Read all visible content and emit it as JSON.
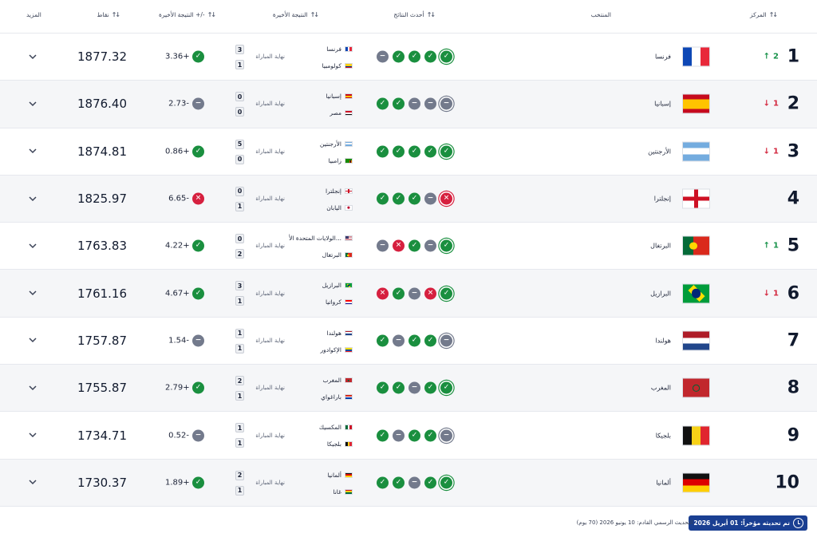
{
  "header": {
    "rank": "المركز",
    "team": "المنتخب",
    "recent_form": "أحدث النتائج",
    "last_result": "النتيجة الأخيرة",
    "last_change": "النتيجة الأخيرة +/-",
    "points": "نقاط",
    "more": "المزيد"
  },
  "colors": {
    "win": "#1a8f3f",
    "draw": "#737a8c",
    "loss": "#d6203f",
    "up": "#18924a",
    "down": "#d3283f",
    "badge": "#1a3f92"
  },
  "rows": [
    {
      "rank": "1",
      "move_dir": "up",
      "move_val": "2",
      "team": "فرنسا",
      "flag": "fr",
      "form": [
        "draw",
        "win",
        "win",
        "win",
        "win"
      ],
      "match": {
        "home": "فرنسا",
        "home_flag": "fr",
        "home_score": "3",
        "away": "كولومبيا",
        "away_flag": "co",
        "away_score": "1",
        "status": "نهاية المباراة"
      },
      "change": "3.36+",
      "change_type": "win",
      "points": "1877.32"
    },
    {
      "rank": "2",
      "move_dir": "down",
      "move_val": "1",
      "team": "إسبانيا",
      "flag": "es",
      "form": [
        "win",
        "win",
        "draw",
        "draw",
        "draw"
      ],
      "match": {
        "home": "إسبانيا",
        "home_flag": "es",
        "home_score": "0",
        "away": "مصر",
        "away_flag": "eg",
        "away_score": "0",
        "status": "نهاية المباراة"
      },
      "change": "2.73-",
      "change_type": "draw",
      "points": "1876.40"
    },
    {
      "rank": "3",
      "move_dir": "down",
      "move_val": "1",
      "team": "الأرجنتين",
      "flag": "ar",
      "form": [
        "win",
        "win",
        "win",
        "win",
        "win"
      ],
      "match": {
        "home": "الأرجنتين",
        "home_flag": "ar",
        "home_score": "5",
        "away": "زامبيا",
        "away_flag": "zm",
        "away_score": "0",
        "status": "نهاية المباراة"
      },
      "change": "0.86+",
      "change_type": "win",
      "points": "1874.81"
    },
    {
      "rank": "4",
      "move_dir": "",
      "move_val": "",
      "team": "إنجلترا",
      "flag": "en",
      "form": [
        "win",
        "win",
        "win",
        "draw",
        "loss"
      ],
      "match": {
        "home": "إنجلترا",
        "home_flag": "en",
        "home_score": "0",
        "away": "اليابان",
        "away_flag": "jp",
        "away_score": "1",
        "status": "نهاية المباراة"
      },
      "change": "6.65-",
      "change_type": "loss",
      "points": "1825.97"
    },
    {
      "rank": "5",
      "move_dir": "up",
      "move_val": "1",
      "team": "البرتغال",
      "flag": "pt",
      "form": [
        "draw",
        "loss",
        "win",
        "draw",
        "win"
      ],
      "match": {
        "home": "الولايات المتحدة الأ...",
        "home_flag": "us",
        "home_score": "0",
        "away": "البرتغال",
        "away_flag": "pt",
        "away_score": "2",
        "status": "نهاية المباراة"
      },
      "change": "4.22+",
      "change_type": "win",
      "points": "1763.83"
    },
    {
      "rank": "6",
      "move_dir": "down",
      "move_val": "1",
      "team": "البرازيل",
      "flag": "br",
      "form": [
        "loss",
        "win",
        "draw",
        "loss",
        "win"
      ],
      "match": {
        "home": "البرازيل",
        "home_flag": "br",
        "home_score": "3",
        "away": "كرواتيا",
        "away_flag": "hr",
        "away_score": "1",
        "status": "نهاية المباراة"
      },
      "change": "4.67+",
      "change_type": "win",
      "points": "1761.16"
    },
    {
      "rank": "7",
      "move_dir": "",
      "move_val": "",
      "team": "هولندا",
      "flag": "nl",
      "form": [
        "win",
        "draw",
        "win",
        "win",
        "draw"
      ],
      "match": {
        "home": "هولندا",
        "home_flag": "nl",
        "home_score": "1",
        "away": "الإكوادور",
        "away_flag": "ec",
        "away_score": "1",
        "status": "نهاية المباراة"
      },
      "change": "1.54-",
      "change_type": "draw",
      "points": "1757.87"
    },
    {
      "rank": "8",
      "move_dir": "",
      "move_val": "",
      "team": "المغرب",
      "flag": "ma",
      "form": [
        "win",
        "win",
        "draw",
        "win",
        "win"
      ],
      "match": {
        "home": "المغرب",
        "home_flag": "ma",
        "home_score": "2",
        "away": "باراغواي",
        "away_flag": "py",
        "away_score": "1",
        "status": "نهاية المباراة"
      },
      "change": "2.79+",
      "change_type": "win",
      "points": "1755.87"
    },
    {
      "rank": "9",
      "move_dir": "",
      "move_val": "",
      "team": "بلجيكا",
      "flag": "be",
      "form": [
        "win",
        "draw",
        "win",
        "win",
        "draw"
      ],
      "match": {
        "home": "المكسيك",
        "home_flag": "mx",
        "home_score": "1",
        "away": "بلجيكا",
        "away_flag": "be",
        "away_score": "1",
        "status": "نهاية المباراة"
      },
      "change": "0.52-",
      "change_type": "draw",
      "points": "1734.71"
    },
    {
      "rank": "10",
      "move_dir": "",
      "move_val": "",
      "team": "ألمانيا",
      "flag": "de",
      "form": [
        "win",
        "win",
        "draw",
        "win",
        "win"
      ],
      "match": {
        "home": "ألمانيا",
        "home_flag": "de",
        "home_score": "2",
        "away": "غانا",
        "away_flag": "gh",
        "away_score": "1",
        "status": "نهاية المباراة"
      },
      "change": "1.89+",
      "change_type": "win",
      "points": "1730.37"
    }
  ],
  "footer": {
    "updated": "تم تحديثه مؤخراً: 01 أبريل 2026",
    "next_update": "التحديث الرسمي القادم: 10 يونيو 2026 (70 يوم)"
  }
}
